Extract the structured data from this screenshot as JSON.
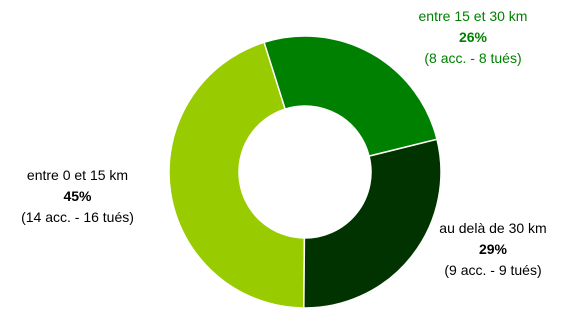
{
  "chart_data": {
    "type": "pie",
    "style": "donut",
    "slices": [
      {
        "label": "entre 0 et 15 km",
        "percent": "45%",
        "value": 45,
        "detail": "(14 acc. - 16 tués)",
        "color": "#99cc00"
      },
      {
        "label": "entre 15 et 30 km",
        "percent": "26%",
        "value": 26,
        "detail": "(8 acc. - 8 tués)",
        "color": "#008000"
      },
      {
        "label": "au delà de 30 km",
        "percent": "29%",
        "value": 29,
        "detail": "(9 acc. - 9 tués)",
        "color": "#003300"
      }
    ],
    "legend_colors": [
      "#99cc00",
      "#008000",
      "#003300"
    ]
  }
}
